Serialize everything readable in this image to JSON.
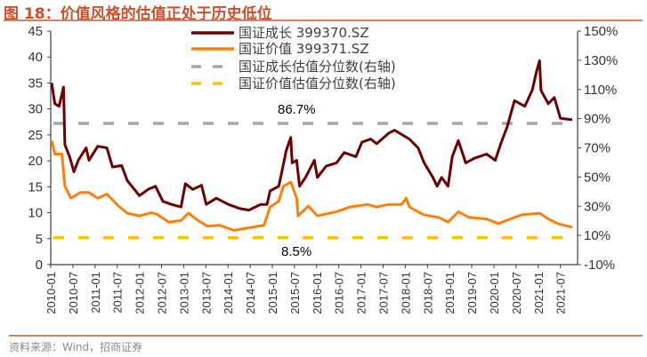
{
  "title": "图 18：价值风格的估值正处于历史低位",
  "source": "资料来源：Wind，招商证券",
  "chart_data": {
    "type": "line",
    "title": "图 18：价值风格的估值正处于历史低位",
    "left_axis": {
      "ylim": [
        0,
        45
      ],
      "ticks": [
        "0",
        "5",
        "10",
        "15",
        "20",
        "25",
        "30",
        "35",
        "40",
        "45"
      ]
    },
    "right_axis": {
      "ylim": [
        -10,
        150
      ],
      "unit": "%",
      "ticks": [
        "-10%",
        "10%",
        "30%",
        "50%",
        "70%",
        "90%",
        "110%",
        "130%",
        "150%"
      ]
    },
    "x_ticks": [
      "2010-01",
      "2010-07",
      "2011-01",
      "2011-07",
      "2012-01",
      "2012-07",
      "2013-01",
      "2013-07",
      "2014-01",
      "2014-07",
      "2015-01",
      "2015-07",
      "2016-01",
      "2016-07",
      "2017-01",
      "2017-07",
      "2018-01",
      "2018-07",
      "2019-01",
      "2019-07",
      "2020-01",
      "2020-07",
      "2021-01",
      "2021-07"
    ],
    "grid": false,
    "legend_position": "top-center",
    "series": [
      {
        "name": "国证成长 399370.SZ",
        "axis": "left",
        "color": "#6b0000",
        "style": "solid",
        "points": [
          [
            "2010-01-09",
            35.0
          ],
          [
            "2010-02-04",
            31.0
          ],
          [
            "2010-03-09",
            30.5
          ],
          [
            "2010-04-15",
            34.2
          ],
          [
            "2010-04-26",
            23.1
          ],
          [
            "2010-06-04",
            20.8
          ],
          [
            "2010-07-09",
            17.9
          ],
          [
            "2010-08-15",
            20.1
          ],
          [
            "2010-10-18",
            22.5
          ],
          [
            "2010-11-12",
            20.1
          ],
          [
            "2011-01-23",
            22.8
          ],
          [
            "2011-04-07",
            22.5
          ],
          [
            "2011-05-23",
            18.8
          ],
          [
            "2011-08-07",
            19.1
          ],
          [
            "2011-09-23",
            16.2
          ],
          [
            "2012-01-01",
            13.3
          ],
          [
            "2012-03-12",
            14.5
          ],
          [
            "2012-05-12",
            15.1
          ],
          [
            "2012-07-12",
            12.2
          ],
          [
            "2012-09-23",
            11.6
          ],
          [
            "2012-12-09",
            11.1
          ],
          [
            "2013-01-15",
            15.6
          ],
          [
            "2013-03-15",
            14.5
          ],
          [
            "2013-05-26",
            15.3
          ],
          [
            "2013-07-04",
            11.6
          ],
          [
            "2013-09-26",
            12.8
          ],
          [
            "2014-01-04",
            11.6
          ],
          [
            "2014-04-09",
            10.8
          ],
          [
            "2014-06-20",
            10.5
          ],
          [
            "2014-09-26",
            11.6
          ],
          [
            "2014-11-18",
            11.6
          ],
          [
            "2014-12-12",
            14.2
          ],
          [
            "2015-02-23",
            15.1
          ],
          [
            "2015-03-18",
            17.9
          ],
          [
            "2015-04-23",
            21.9
          ],
          [
            "2015-06-01",
            24.5
          ],
          [
            "2015-06-12",
            19.6
          ],
          [
            "2015-07-18",
            20.1
          ],
          [
            "2015-08-12",
            15.1
          ],
          [
            "2015-10-01",
            16.8
          ],
          [
            "2015-12-12",
            20.1
          ],
          [
            "2016-01-07",
            16.8
          ],
          [
            "2016-03-18",
            19.0
          ],
          [
            "2016-06-12",
            19.6
          ],
          [
            "2016-08-15",
            21.6
          ],
          [
            "2016-11-20",
            20.8
          ],
          [
            "2017-01-09",
            23.6
          ],
          [
            "2017-03-20",
            24.2
          ],
          [
            "2017-05-09",
            23.3
          ],
          [
            "2017-08-15",
            25.3
          ],
          [
            "2017-10-04",
            25.9
          ],
          [
            "2018-02-04",
            24.2
          ],
          [
            "2018-04-15",
            22.5
          ],
          [
            "2018-06-04",
            19.6
          ],
          [
            "2018-08-15",
            16.8
          ],
          [
            "2018-09-20",
            15.1
          ],
          [
            "2018-10-26",
            16.8
          ],
          [
            "2018-12-18",
            15.1
          ],
          [
            "2019-01-23",
            20.8
          ],
          [
            "2019-03-12",
            23.9
          ],
          [
            "2019-05-12",
            19.6
          ],
          [
            "2019-07-23",
            20.5
          ],
          [
            "2019-11-01",
            21.3
          ],
          [
            "2020-01-12",
            20.1
          ],
          [
            "2020-03-01",
            23.6
          ],
          [
            "2020-04-18",
            26.5
          ],
          [
            "2020-06-18",
            31.6
          ],
          [
            "2020-09-12",
            30.5
          ],
          [
            "2020-11-12",
            33.6
          ],
          [
            "2020-12-18",
            37.3
          ],
          [
            "2021-01-12",
            39.3
          ],
          [
            "2021-01-23",
            33.6
          ],
          [
            "2021-03-23",
            31.0
          ],
          [
            "2021-05-12",
            32.2
          ],
          [
            "2021-07-01",
            28.2
          ],
          [
            "2021-10-07",
            27.9
          ]
        ]
      },
      {
        "name": "国证价值 399371.SZ",
        "axis": "left",
        "color": "#ff7f0e",
        "style": "solid",
        "points": [
          [
            "2010-01-09",
            23.9
          ],
          [
            "2010-02-04",
            21.3
          ],
          [
            "2010-04-01",
            21.3
          ],
          [
            "2010-04-26",
            15.1
          ],
          [
            "2010-06-15",
            12.8
          ],
          [
            "2010-09-01",
            13.9
          ],
          [
            "2010-11-12",
            13.9
          ],
          [
            "2011-01-23",
            12.8
          ],
          [
            "2011-04-07",
            13.6
          ],
          [
            "2011-07-12",
            11.3
          ],
          [
            "2011-09-23",
            9.9
          ],
          [
            "2012-01-01",
            9.4
          ],
          [
            "2012-04-07",
            10.0
          ],
          [
            "2012-05-23",
            9.7
          ],
          [
            "2012-09-01",
            8.2
          ],
          [
            "2012-12-09",
            8.5
          ],
          [
            "2013-02-09",
            9.9
          ],
          [
            "2013-04-09",
            8.8
          ],
          [
            "2013-07-15",
            7.4
          ],
          [
            "2013-10-20",
            7.6
          ],
          [
            "2014-02-20",
            6.6
          ],
          [
            "2014-06-20",
            7.1
          ],
          [
            "2014-10-23",
            7.6
          ],
          [
            "2014-12-12",
            11.1
          ],
          [
            "2015-02-23",
            12.2
          ],
          [
            "2015-04-01",
            15.1
          ],
          [
            "2015-06-01",
            15.9
          ],
          [
            "2015-07-18",
            12.8
          ],
          [
            "2015-08-01",
            9.4
          ],
          [
            "2015-10-23",
            11.3
          ],
          [
            "2016-01-07",
            9.4
          ],
          [
            "2016-06-12",
            10.2
          ],
          [
            "2016-10-01",
            11.1
          ],
          [
            "2017-02-23",
            11.6
          ],
          [
            "2017-05-07",
            11.1
          ],
          [
            "2017-08-15",
            11.6
          ],
          [
            "2017-12-01",
            11.6
          ],
          [
            "2018-01-09",
            12.8
          ],
          [
            "2018-02-04",
            11.1
          ],
          [
            "2018-06-01",
            9.6
          ],
          [
            "2018-10-01",
            9.1
          ],
          [
            "2018-12-18",
            8.2
          ],
          [
            "2019-03-12",
            10.2
          ],
          [
            "2019-06-07",
            9.1
          ],
          [
            "2019-11-01",
            8.8
          ],
          [
            "2020-02-07",
            7.9
          ],
          [
            "2020-05-12",
            8.8
          ],
          [
            "2020-08-18",
            9.6
          ],
          [
            "2021-01-12",
            9.9
          ],
          [
            "2021-03-23",
            8.8
          ],
          [
            "2021-06-09",
            7.9
          ],
          [
            "2021-10-07",
            7.2
          ]
        ]
      },
      {
        "name": "国证成长估值分位数(右轴)",
        "axis": "right",
        "color": "#a6a6a6",
        "style": "dashed",
        "value": 86.7,
        "label": "86.7%"
      },
      {
        "name": "国证价值估值分位数(右轴)",
        "axis": "right",
        "color": "#ffc000",
        "style": "dashed",
        "value": 8.5,
        "label": "8.5%"
      }
    ]
  }
}
